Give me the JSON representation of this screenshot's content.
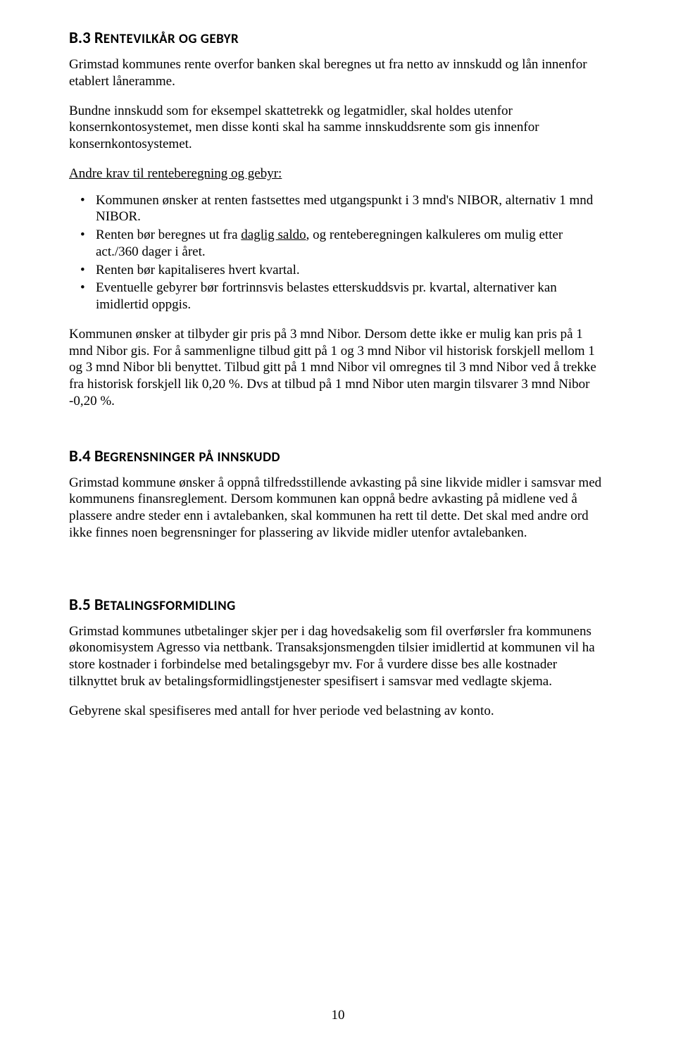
{
  "section_b3": {
    "heading_major": "B.3 R",
    "heading_minor": "ENTEVILKÅR OG GEBYR",
    "p1": "Grimstad kommunes rente overfor banken skal beregnes ut fra netto av innskudd og lån innenfor etablert låneramme.",
    "p2": "Bundne innskudd som for eksempel skattetrekk og legatmidler, skal holdes utenfor konsernkontosystemet, men disse konti skal ha samme innskuddsrente som gis innenfor konsernkontosystemet.",
    "p3": "Andre krav til renteberegning og gebyr:",
    "bullets": [
      {
        "pre": "Kommunen ønsker at renten fastsettes med utgangspunkt i 3 mnd's NIBOR, alternativ 1 mnd NIBOR."
      },
      {
        "pre": "Renten bør beregnes ut fra ",
        "underlined": "daglig saldo",
        "post": ", og renteberegningen kalkuleres om mulig etter act./360 dager i året."
      },
      {
        "pre": "Renten bør kapitaliseres hvert kvartal."
      },
      {
        "pre": "Eventuelle gebyrer bør fortrinnsvis belastes etterskuddsvis pr. kvartal, alternativer kan imidlertid oppgis."
      }
    ],
    "p4": "Kommunen ønsker at tilbyder gir pris på 3 mnd Nibor. Dersom dette ikke er mulig kan pris på 1 mnd Nibor gis. For å sammenligne tilbud gitt på 1 og 3 mnd Nibor vil historisk forskjell mellom 1 og 3 mnd Nibor bli benyttet. Tilbud gitt på 1 mnd Nibor vil omregnes til 3 mnd Nibor ved å trekke fra historisk forskjell lik 0,20 %. Dvs at tilbud på 1 mnd Nibor uten margin tilsvarer 3 mnd Nibor -0,20 %."
  },
  "section_b4": {
    "heading_major": "B.4 B",
    "heading_minor": "EGRENSNINGER PÅ INNSKUDD",
    "p1": "Grimstad kommune ønsker å oppnå tilfredsstillende avkasting på sine likvide midler i samsvar med kommunens finansreglement. Dersom kommunen kan oppnå bedre avkasting på midlene ved å plassere andre steder enn i avtalebanken, skal kommunen ha rett til dette. Det skal med andre ord ikke finnes noen begrensninger for plassering av likvide midler utenfor avtalebanken."
  },
  "section_b5": {
    "heading_major": "B.5 B",
    "heading_minor": "ETALINGSFORMIDLING",
    "p1": "Grimstad kommunes utbetalinger skjer per i dag hovedsakelig som fil overførsler fra kommunens økonomisystem Agresso via nettbank. Transaksjonsmengden tilsier imidlertid at kommunen vil ha store kostnader i forbindelse med betalingsgebyr mv. For å vurdere disse bes alle kostnader tilknyttet bruk av betalingsformidlingstjenester spesifisert i samsvar med vedlagte skjema.",
    "p2": "Gebyrene skal spesifiseres med antall for hver periode ved belastning av konto."
  },
  "page_number": "10"
}
